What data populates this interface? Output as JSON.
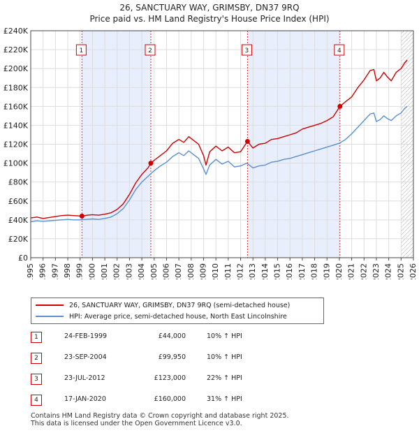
{
  "chart_data": {
    "type": "line",
    "title": "26, SANCTUARY WAY, GRIMSBY, DN37 9RQ",
    "subtitle": "Price paid vs. HM Land Registry's House Price Index (HPI)",
    "x_range": [
      1995,
      2026
    ],
    "y_range": [
      0,
      240000
    ],
    "x_ticks": [
      1995,
      1996,
      1997,
      1998,
      1999,
      2000,
      2001,
      2002,
      2003,
      2004,
      2005,
      2006,
      2007,
      2008,
      2009,
      2010,
      2011,
      2012,
      2013,
      2014,
      2015,
      2016,
      2017,
      2018,
      2019,
      2020,
      2021,
      2022,
      2023,
      2024,
      2025,
      2026
    ],
    "y_ticks": [
      {
        "value": 0,
        "label": "£0"
      },
      {
        "value": 20000,
        "label": "£20K"
      },
      {
        "value": 40000,
        "label": "£40K"
      },
      {
        "value": 60000,
        "label": "£60K"
      },
      {
        "value": 80000,
        "label": "£80K"
      },
      {
        "value": 100000,
        "label": "£100K"
      },
      {
        "value": 120000,
        "label": "£120K"
      },
      {
        "value": 140000,
        "label": "£140K"
      },
      {
        "value": 160000,
        "label": "£160K"
      },
      {
        "value": 180000,
        "label": "£180K"
      },
      {
        "value": 200000,
        "label": "£200K"
      },
      {
        "value": 220000,
        "label": "£220K"
      },
      {
        "value": 240000,
        "label": "£240K"
      }
    ],
    "forecast_from": 2025.0,
    "shaded_periods": [
      [
        1999.15,
        2004.73
      ],
      [
        2012.56,
        2020.05
      ]
    ],
    "series": [
      {
        "name": "26, SANCTUARY WAY, GRIMSBY, DN37 9RQ (semi-detached house)",
        "color": "#cc0000",
        "points": [
          [
            1995.0,
            42000
          ],
          [
            1995.5,
            43000
          ],
          [
            1996.0,
            41500
          ],
          [
            1996.5,
            42500
          ],
          [
            1997.0,
            43500
          ],
          [
            1997.5,
            44500
          ],
          [
            1998.0,
            45000
          ],
          [
            1998.5,
            44500
          ],
          [
            1999.15,
            44000
          ],
          [
            1999.6,
            45000
          ],
          [
            2000.0,
            45500
          ],
          [
            2000.5,
            45000
          ],
          [
            2001.0,
            46000
          ],
          [
            2001.5,
            47500
          ],
          [
            2002.0,
            51000
          ],
          [
            2002.5,
            57000
          ],
          [
            2003.0,
            67000
          ],
          [
            2003.5,
            79000
          ],
          [
            2004.0,
            88000
          ],
          [
            2004.5,
            95000
          ],
          [
            2004.73,
            99950
          ],
          [
            2005.0,
            103000
          ],
          [
            2005.5,
            108000
          ],
          [
            2006.0,
            113000
          ],
          [
            2006.5,
            121000
          ],
          [
            2007.0,
            125000
          ],
          [
            2007.4,
            122000
          ],
          [
            2007.8,
            128000
          ],
          [
            2008.2,
            124000
          ],
          [
            2008.6,
            120000
          ],
          [
            2009.0,
            108000
          ],
          [
            2009.2,
            98000
          ],
          [
            2009.5,
            112000
          ],
          [
            2010.0,
            118000
          ],
          [
            2010.5,
            113000
          ],
          [
            2011.0,
            117000
          ],
          [
            2011.5,
            111000
          ],
          [
            2012.0,
            112000
          ],
          [
            2012.56,
            123000
          ],
          [
            2013.0,
            116000
          ],
          [
            2013.5,
            120000
          ],
          [
            2014.0,
            121000
          ],
          [
            2014.5,
            125000
          ],
          [
            2015.0,
            126000
          ],
          [
            2015.5,
            128000
          ],
          [
            2016.0,
            130000
          ],
          [
            2016.5,
            132000
          ],
          [
            2017.0,
            136000
          ],
          [
            2017.5,
            138000
          ],
          [
            2018.0,
            140000
          ],
          [
            2018.5,
            142000
          ],
          [
            2019.0,
            145000
          ],
          [
            2019.5,
            149000
          ],
          [
            2020.05,
            160000
          ],
          [
            2020.5,
            165000
          ],
          [
            2021.0,
            170000
          ],
          [
            2021.5,
            180000
          ],
          [
            2022.0,
            188000
          ],
          [
            2022.5,
            198000
          ],
          [
            2022.8,
            199000
          ],
          [
            2023.0,
            187000
          ],
          [
            2023.3,
            190000
          ],
          [
            2023.6,
            196000
          ],
          [
            2023.9,
            191000
          ],
          [
            2024.2,
            187000
          ],
          [
            2024.6,
            196000
          ],
          [
            2025.0,
            200000
          ],
          [
            2025.3,
            206000
          ],
          [
            2025.5,
            209000
          ]
        ]
      },
      {
        "name": "HPI: Average price, semi-detached house, North East Lincolnshire",
        "color": "#5b8fd0",
        "points": [
          [
            1995.0,
            38000
          ],
          [
            1995.5,
            39000
          ],
          [
            1996.0,
            38500
          ],
          [
            1996.5,
            39000
          ],
          [
            1997.0,
            39500
          ],
          [
            1997.5,
            40000
          ],
          [
            1998.0,
            40500
          ],
          [
            1998.5,
            40000
          ],
          [
            1999.0,
            40000
          ],
          [
            1999.5,
            40500
          ],
          [
            2000.0,
            41000
          ],
          [
            2000.5,
            40500
          ],
          [
            2001.0,
            41500
          ],
          [
            2001.5,
            43000
          ],
          [
            2002.0,
            46500
          ],
          [
            2002.5,
            52000
          ],
          [
            2003.0,
            61000
          ],
          [
            2003.5,
            72000
          ],
          [
            2004.0,
            80000
          ],
          [
            2004.5,
            86000
          ],
          [
            2005.0,
            92000
          ],
          [
            2005.5,
            97000
          ],
          [
            2006.0,
            101000
          ],
          [
            2006.5,
            107000
          ],
          [
            2007.0,
            111000
          ],
          [
            2007.4,
            108000
          ],
          [
            2007.8,
            113000
          ],
          [
            2008.2,
            109000
          ],
          [
            2008.6,
            105000
          ],
          [
            2009.0,
            94000
          ],
          [
            2009.2,
            88000
          ],
          [
            2009.5,
            98000
          ],
          [
            2010.0,
            104000
          ],
          [
            2010.5,
            99000
          ],
          [
            2011.0,
            102000
          ],
          [
            2011.5,
            96000
          ],
          [
            2012.0,
            97000
          ],
          [
            2012.5,
            100000
          ],
          [
            2013.0,
            95000
          ],
          [
            2013.5,
            97000
          ],
          [
            2014.0,
            98000
          ],
          [
            2014.5,
            101000
          ],
          [
            2015.0,
            102000
          ],
          [
            2015.5,
            104000
          ],
          [
            2016.0,
            105000
          ],
          [
            2016.5,
            107000
          ],
          [
            2017.0,
            109000
          ],
          [
            2017.5,
            111000
          ],
          [
            2018.0,
            113000
          ],
          [
            2018.5,
            115000
          ],
          [
            2019.0,
            117000
          ],
          [
            2019.5,
            119000
          ],
          [
            2020.0,
            121000
          ],
          [
            2020.5,
            125000
          ],
          [
            2021.0,
            131000
          ],
          [
            2021.5,
            138000
          ],
          [
            2022.0,
            145000
          ],
          [
            2022.5,
            152000
          ],
          [
            2022.8,
            153000
          ],
          [
            2023.0,
            144000
          ],
          [
            2023.3,
            146000
          ],
          [
            2023.6,
            150000
          ],
          [
            2023.9,
            147000
          ],
          [
            2024.2,
            145000
          ],
          [
            2024.6,
            150000
          ],
          [
            2025.0,
            153000
          ],
          [
            2025.3,
            158000
          ],
          [
            2025.5,
            160000
          ]
        ]
      }
    ],
    "sales": [
      {
        "id": "1",
        "x": 1999.15,
        "value": 44000
      },
      {
        "id": "2",
        "x": 2004.73,
        "value": 99950
      },
      {
        "id": "3",
        "x": 2012.56,
        "value": 123000
      },
      {
        "id": "4",
        "x": 2020.05,
        "value": 160000
      }
    ]
  },
  "legend": {
    "property_label": "26, SANCTUARY WAY, GRIMSBY, DN37 9RQ (semi-detached house)",
    "hpi_label": "HPI: Average price, semi-detached house, North East Lincolnshire"
  },
  "transactions": [
    {
      "id": "1",
      "date": "24-FEB-1999",
      "price": "£44,000",
      "hpi": "10% ↑ HPI"
    },
    {
      "id": "2",
      "date": "23-SEP-2004",
      "price": "£99,950",
      "hpi": "10% ↑ HPI"
    },
    {
      "id": "3",
      "date": "23-JUL-2012",
      "price": "£123,000",
      "hpi": "22% ↑ HPI"
    },
    {
      "id": "4",
      "date": "17-JAN-2020",
      "price": "£160,000",
      "hpi": "31% ↑ HPI"
    }
  ],
  "footer": {
    "line1": "Contains HM Land Registry data © Crown copyright and database right 2025.",
    "line2": "This data is licensed under the Open Government Licence v3.0."
  },
  "colors": {
    "property": "#cc0000",
    "hpi": "#5b8fd0",
    "shade": "#e8eefb",
    "grid": "#dddddd"
  }
}
